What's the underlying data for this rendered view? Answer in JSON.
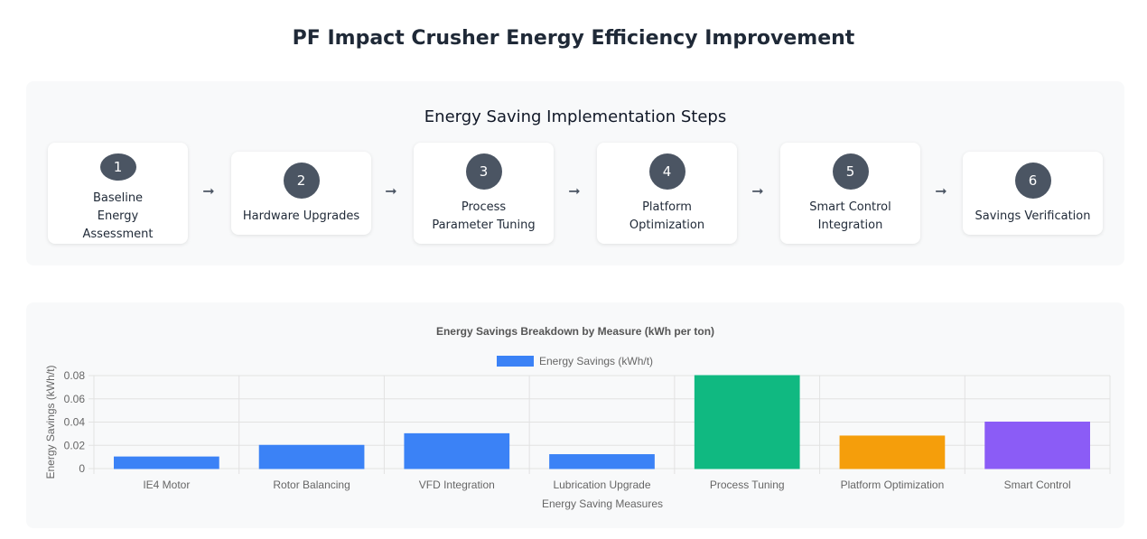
{
  "page_title": "PF Impact Crusher Energy Efficiency Improvement",
  "steps_title": "Energy Saving Implementation Steps",
  "steps": [
    {
      "number": "1",
      "label": "Baseline Energy Assessment"
    },
    {
      "number": "2",
      "label": "Hardware Upgrades"
    },
    {
      "number": "3",
      "label": "Process Parameter Tuning"
    },
    {
      "number": "4",
      "label": "Platform Optimization"
    },
    {
      "number": "5",
      "label": "Smart Control Integration"
    },
    {
      "number": "6",
      "label": "Savings Verification"
    }
  ],
  "arrow_glyph": "➞",
  "chart_data": {
    "type": "bar",
    "title": "Energy Savings Breakdown by Measure (kWh per ton)",
    "xlabel": "Energy Saving Measures",
    "ylabel": "Energy Savings (kWh/t)",
    "legend_position": "top",
    "grid": true,
    "ylim": [
      0,
      0.08
    ],
    "yticks": [
      "0",
      "0.02",
      "0.04",
      "0.06",
      "0.08"
    ],
    "categories": [
      "IE4 Motor",
      "Rotor Balancing",
      "VFD Integration",
      "Lubrication Upgrade",
      "Process Tuning",
      "Platform Optimization",
      "Smart Control"
    ],
    "series": [
      {
        "name": "Energy Savings (kWh/t)",
        "color": "#3b82f6",
        "values": [
          0.01,
          0.02,
          0.03,
          0.012,
          0.08,
          0.028,
          0.04
        ],
        "bar_colors": [
          "#3b82f6",
          "#3b82f6",
          "#3b82f6",
          "#3b82f6",
          "#10b981",
          "#f59e0b",
          "#8b5cf6"
        ]
      }
    ]
  }
}
